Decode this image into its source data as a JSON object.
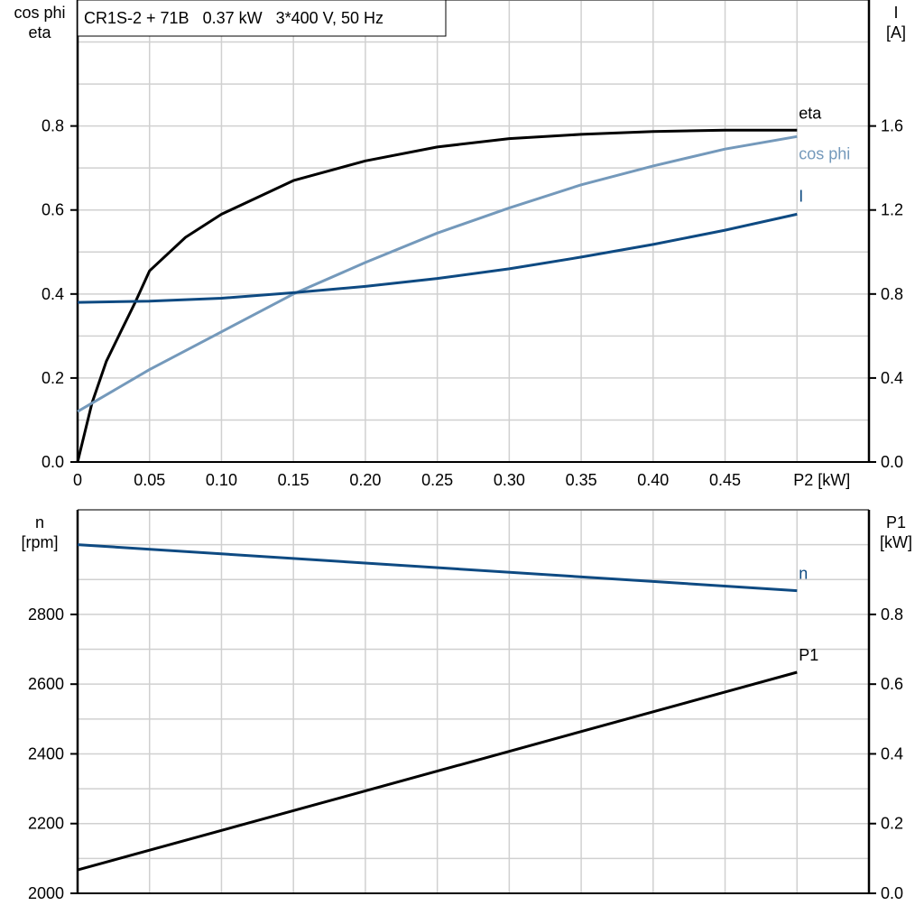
{
  "title": "CR1S-2 + 71B   0.37 kW   3*400 V, 50 Hz",
  "colors": {
    "eta": "#000000",
    "cos_phi": "#7499bb",
    "I": "#0e4a82",
    "n": "#0e4a82",
    "P1": "#000000",
    "grid": "#d0d0d0"
  },
  "chart_data": [
    {
      "type": "line",
      "xlabel": "P2 [kW]",
      "ylabel_left": [
        "cos phi",
        "eta"
      ],
      "ylabel_right": [
        "I",
        "[A]"
      ],
      "xlim": [
        0,
        0.55
      ],
      "ylim_left": [
        0,
        1.1
      ],
      "ylim_right": [
        0,
        2.2
      ],
      "grid": true,
      "x_ticks": [
        "0",
        "0.05",
        "0.10",
        "0.15",
        "0.20",
        "0.25",
        "0.30",
        "0.35",
        "0.40",
        "0.45"
      ],
      "y_ticks_left": [
        "0.0",
        "0.2",
        "0.4",
        "0.6",
        "0.8"
      ],
      "y_ticks_right": [
        "0.0",
        "0.4",
        "0.8",
        "1.2",
        "1.6"
      ],
      "series": [
        {
          "name": "eta",
          "axis": "left",
          "x": [
            0,
            0.01,
            0.02,
            0.03,
            0.04,
            0.05,
            0.075,
            0.1,
            0.15,
            0.2,
            0.25,
            0.3,
            0.35,
            0.4,
            0.45,
            0.5
          ],
          "y": [
            0,
            0.14,
            0.24,
            0.31,
            0.38,
            0.455,
            0.535,
            0.59,
            0.67,
            0.717,
            0.75,
            0.77,
            0.78,
            0.787,
            0.79,
            0.79
          ]
        },
        {
          "name": "cos phi",
          "axis": "left",
          "x": [
            0,
            0.05,
            0.1,
            0.15,
            0.2,
            0.25,
            0.3,
            0.35,
            0.4,
            0.45,
            0.5
          ],
          "y": [
            0.12,
            0.22,
            0.31,
            0.4,
            0.475,
            0.545,
            0.605,
            0.66,
            0.705,
            0.745,
            0.775
          ]
        },
        {
          "name": "I",
          "axis": "right",
          "x": [
            0,
            0.05,
            0.1,
            0.15,
            0.2,
            0.25,
            0.3,
            0.35,
            0.4,
            0.45,
            0.5
          ],
          "y": [
            0.76,
            0.766,
            0.78,
            0.806,
            0.836,
            0.874,
            0.92,
            0.976,
            1.036,
            1.104,
            1.18
          ]
        }
      ]
    },
    {
      "type": "line",
      "ylabel_left": [
        "n",
        "[rpm]"
      ],
      "ylabel_right": [
        "P1",
        "[kW]"
      ],
      "xlim": [
        0,
        0.55
      ],
      "ylim_left": [
        2000,
        3100
      ],
      "ylim_right": [
        0,
        1.1
      ],
      "grid": true,
      "y_ticks_left": [
        "2000",
        "2200",
        "2400",
        "2600",
        "2800"
      ],
      "y_ticks_right": [
        "0.0",
        "0.2",
        "0.4",
        "0.6",
        "0.8"
      ],
      "series": [
        {
          "name": "n",
          "axis": "left",
          "x": [
            0,
            0.5
          ],
          "y": [
            3000,
            2868
          ]
        },
        {
          "name": "P1",
          "axis": "right",
          "x": [
            0,
            0.5
          ],
          "y": [
            0.067,
            0.634
          ]
        }
      ]
    }
  ]
}
